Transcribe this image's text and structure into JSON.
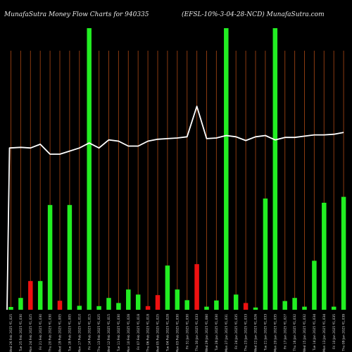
{
  "chart_data": {
    "type": "bar",
    "title_left": "MunafaSutra  Money Flow  Charts for 940335",
    "title_right": "(EFSL-10%-3-04-28-NCD) MunafaSutra.com",
    "categories": [
      "Wed 26 Feb 2025 ₹1,025",
      "Tue 25 Feb 2025 ₹1,030",
      "Mon 24 Feb 2025 ₹1,025",
      "Fri 21 Feb 2025 ₹1,030",
      "Thu 20 Feb 2025 ₹1,030",
      "Wed 19 Feb 2025 ₹1,005",
      "Tue 18 Feb 2025 ₹1,005",
      "Mon 17 Feb 2025 ₹1,010",
      "Fri 14 Feb 2025 ₹1,015",
      "Thu 13 Feb 2025 ₹1,025",
      "Wed 12 Feb 2025 ₹1,015",
      "Tue 11 Feb 2025 ₹1,030",
      "Mon 10 Feb 2025 ₹1,028",
      "Fri 07 Feb 2025 ₹1,018",
      "Thu 06 Feb 2025 ₹1,018",
      "Wed 05 Feb 2025 ₹1,025",
      "Tue 04 Feb 2025 ₹1,028",
      "Mon 03 Feb 2025 ₹1,030",
      "Fri 31 Jan 2025 ₹1,030",
      "Thu 30 Jan 2025 ₹1,033",
      "Wed 29 Jan 2025 ₹1,080",
      "Tue 28 Jan 2025 ₹1,030",
      "Mon 27 Jan 2025 ₹1,031",
      "Fri 24 Jan 2025 ₹1,035",
      "Thu 23 Jan 2025 ₹1,033",
      "Wed 22 Jan 2025 ₹1,026",
      "Tue 21 Jan 2025 ₹1,033",
      "Mon 20 Jan 2025 ₹1,035",
      "Fri 17 Jan 2025 ₹1,027",
      "Thu 16 Jan 2025 ₹1,032",
      "Wed 15 Jan 2025 ₹1,032",
      "Tue 14 Jan 2025 ₹1,034",
      "Mon 13 Jan 2025 ₹1,034",
      "Fri 10 Jan 2025 ₹1,035",
      "Thu 09 Jan 2025 ₹1,039"
    ],
    "volume": [
      1,
      4.2,
      10.2,
      10.2,
      37.2,
      3.2,
      37.2,
      1.4,
      100,
      1.3,
      4.2,
      2.4,
      7.2,
      5.4,
      1.3,
      5.2,
      15.7,
      7.2,
      3.4,
      16.2,
      1.1,
      3.3,
      100,
      5.4,
      2.4,
      0.8,
      39.5,
      100,
      3.1,
      4.2,
      1.1,
      17.4,
      38,
      1.1,
      40.1
    ],
    "bar_colors": [
      "green",
      "green",
      "red",
      "green",
      "green",
      "red",
      "green",
      "green",
      "green",
      "green",
      "green",
      "green",
      "green",
      "green",
      "red",
      "red",
      "green",
      "green",
      "green",
      "red",
      "green",
      "green",
      "green",
      "green",
      "red",
      "green",
      "green",
      "green",
      "green",
      "green",
      "green",
      "green",
      "green",
      "green",
      "green"
    ],
    "price_line": [
      1025,
      1026,
      1025,
      1031,
      1015,
      1015,
      1020,
      1025,
      1033,
      1025,
      1038,
      1036,
      1028,
      1028,
      1036,
      1039,
      1040,
      1041,
      1043,
      1092,
      1040,
      1041,
      1045,
      1043,
      1037,
      1043,
      1045,
      1038,
      1042,
      1042,
      1044,
      1046,
      1046,
      1047,
      1050
    ],
    "ylim": [
      0,
      100
    ],
    "colors": {
      "background": "#000000",
      "bar_green": "#22ee22",
      "bar_red": "#ee1111",
      "gridline": "#8a3a10",
      "price_line": "#ffffff",
      "text": "#e8e8e8"
    }
  }
}
